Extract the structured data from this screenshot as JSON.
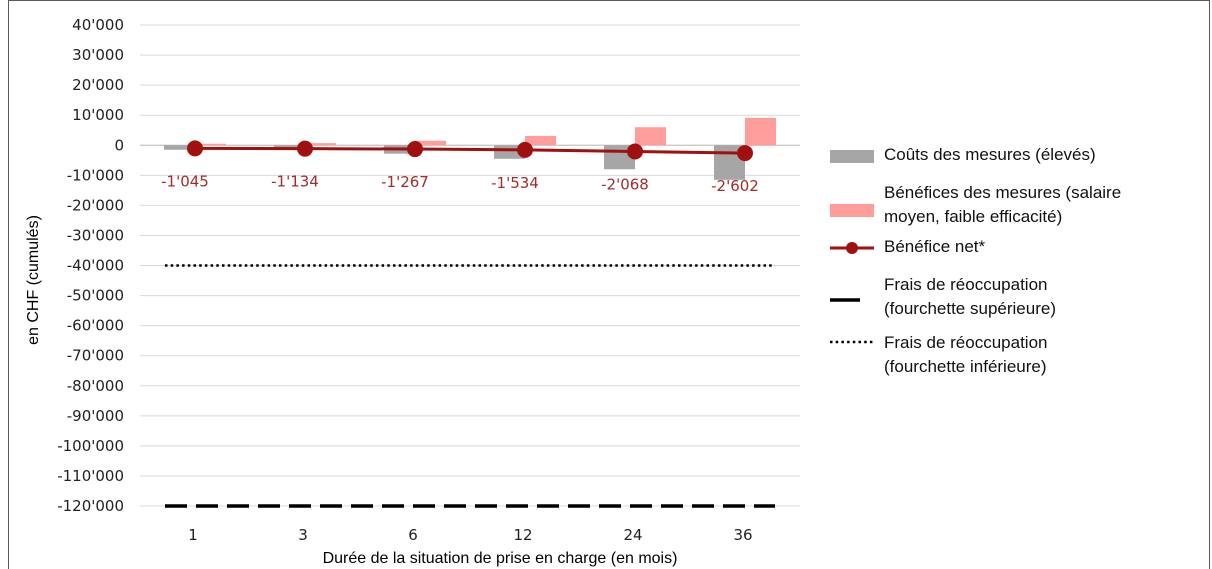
{
  "chart_data": {
    "type": "bar",
    "title": "",
    "xlabel": "Durée de la situation de prise en charge (en mois)",
    "ylabel": "en CHF (cumulés)",
    "ylim": [
      -120000,
      40000
    ],
    "yticks": [
      40000,
      30000,
      20000,
      10000,
      0,
      -10000,
      -20000,
      -30000,
      -40000,
      -50000,
      -60000,
      -70000,
      -80000,
      -90000,
      -100000,
      -110000,
      -120000
    ],
    "ytick_labels": [
      "40'000",
      "30'000",
      "20'000",
      "10'000",
      "0",
      "-10'000",
      "-20'000",
      "-30'000",
      "-40'000",
      "-50'000",
      "-60'000",
      "-70'000",
      "-80'000",
      "-90'000",
      "-100'000",
      "-110'000",
      "-120'000"
    ],
    "categories": [
      "1",
      "3",
      "6",
      "12",
      "24",
      "36"
    ],
    "grid": "horizontal",
    "legend_position": "right",
    "series": [
      {
        "name": "Coûts des mesures (élevés)",
        "kind": "bar",
        "color": "#a6a6a6",
        "values": [
          -1500,
          -1600,
          -2800,
          -4500,
          -8000,
          -11500
        ]
      },
      {
        "name": "Bénéfices des mesures (salaire moyen, faible efficacité)",
        "kind": "bar",
        "color": "#ff9d9d",
        "values": [
          500,
          700,
          1500,
          3100,
          6000,
          9100
        ]
      },
      {
        "name": "Bénéfice net*",
        "kind": "line-marker",
        "color": "#a01010",
        "values": [
          -1045,
          -1134,
          -1267,
          -1534,
          -2068,
          -2602
        ],
        "labels": [
          "-1'045",
          "-1'134",
          "-1'267",
          "-1'534",
          "-2'068",
          "-2'602"
        ]
      },
      {
        "name": "Frais de réoccupation (fourchette supérieure)",
        "kind": "dashed-line",
        "color": "#000000",
        "values": [
          -120000,
          -120000,
          -120000,
          -120000,
          -120000,
          -120000
        ]
      },
      {
        "name": "Frais de réoccupation (fourchette inférieure)",
        "kind": "dotted-line",
        "color": "#000000",
        "values": [
          -40000,
          -40000,
          -40000,
          -40000,
          -40000,
          -40000
        ]
      }
    ],
    "legend": [
      {
        "lines": [
          "Coûts des mesures (élevés)"
        ],
        "symbol": "gray-box"
      },
      {
        "lines": [
          "Bénéfices des mesures (salaire",
          "moyen, faible efficacité)"
        ],
        "symbol": "pink-box"
      },
      {
        "lines": [
          "Bénéfice net*"
        ],
        "symbol": "marker-line"
      },
      {
        "lines": [
          "Frais de réoccupation",
          "(fourchette supérieure)"
        ],
        "symbol": "dash"
      },
      {
        "lines": [
          "Frais de réoccupation",
          "(fourchette inférieure)"
        ],
        "symbol": "dots"
      }
    ]
  }
}
